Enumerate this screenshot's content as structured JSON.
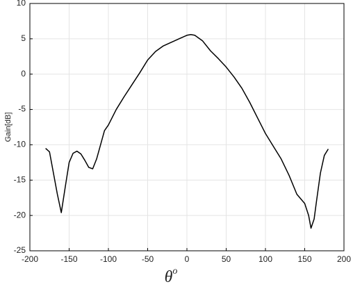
{
  "chart_data": {
    "type": "line",
    "ylabel": "Gain[dB]",
    "xlabel": "θ",
    "xlabel_superscript": "o",
    "x": [
      -180,
      -175,
      -170,
      -165,
      -160,
      -155,
      -150,
      -145,
      -140,
      -135,
      -130,
      -125,
      -120,
      -115,
      -110,
      -105,
      -100,
      -90,
      -80,
      -70,
      -60,
      -50,
      -40,
      -30,
      -20,
      -10,
      0,
      5,
      10,
      20,
      30,
      40,
      50,
      60,
      70,
      80,
      90,
      100,
      110,
      120,
      130,
      140,
      150,
      155,
      158,
      162,
      165,
      170,
      175,
      180
    ],
    "series": [
      {
        "name": "Gain",
        "color": "#000000",
        "values": [
          -10.5,
          -11,
          -14,
          -17,
          -19.6,
          -16,
          -12.5,
          -11.2,
          -10.9,
          -11.3,
          -12.2,
          -13.2,
          -13.4,
          -12,
          -10,
          -8,
          -7.2,
          -5,
          -3.2,
          -1.5,
          0.2,
          2.0,
          3.2,
          4.0,
          4.5,
          5.0,
          5.5,
          5.6,
          5.5,
          4.7,
          3.3,
          2.2,
          1.0,
          -0.4,
          -2,
          -4,
          -6.2,
          -8.4,
          -10.2,
          -12,
          -14.3,
          -17,
          -18.3,
          -20,
          -21.8,
          -20.5,
          -18,
          -14,
          -11.5,
          -10.6
        ]
      }
    ],
    "xlim": [
      -200,
      200
    ],
    "xticks": [
      -200,
      -150,
      -100,
      -50,
      0,
      50,
      100,
      150,
      200
    ],
    "ylim": [
      -25,
      10
    ],
    "yticks": [
      -25,
      -20,
      -15,
      -10,
      -5,
      0,
      5,
      10
    ],
    "grid": true
  }
}
